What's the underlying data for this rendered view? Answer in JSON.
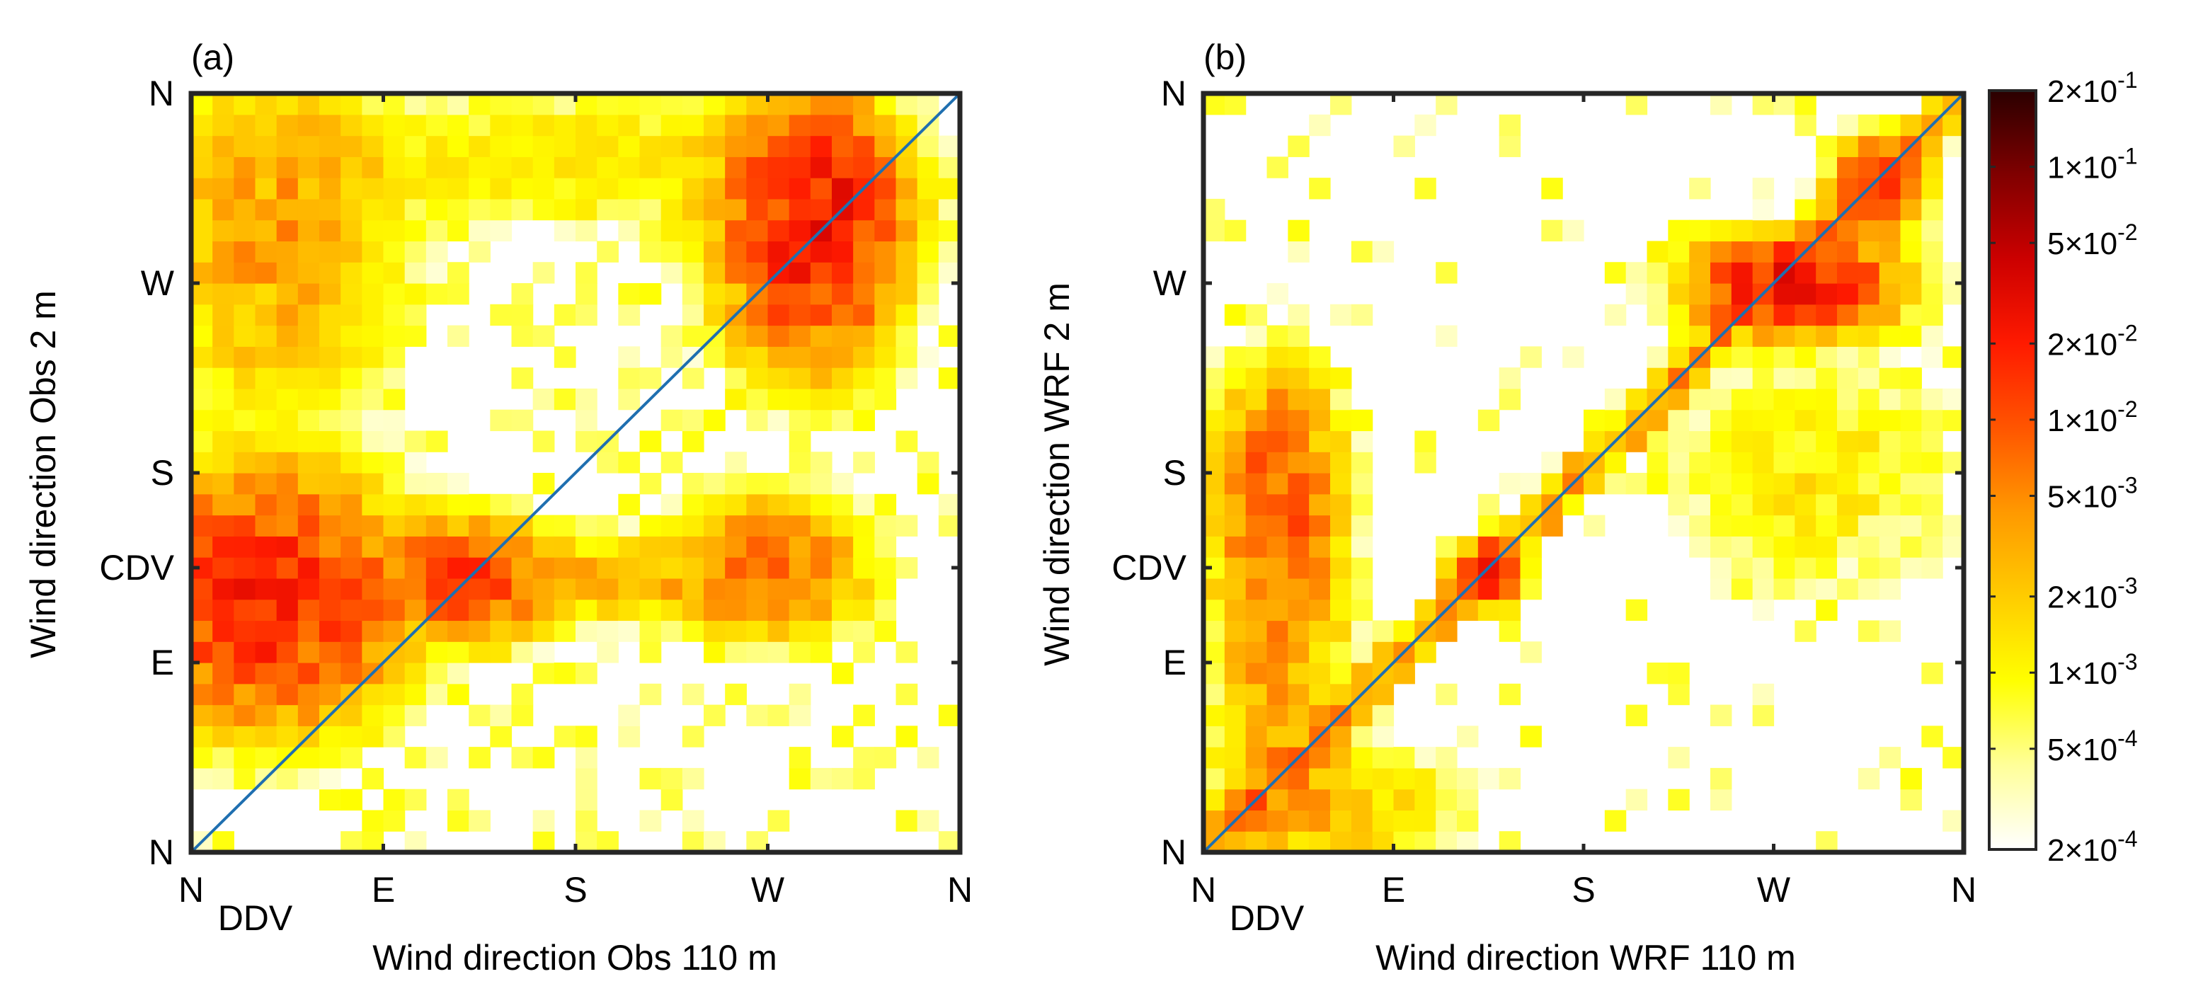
{
  "chart_data": [
    {
      "type": "heatmap",
      "panel_label": "(a)",
      "xlabel": "Wind direction Obs 110 m",
      "ylabel": "Wind direction Obs 2 m",
      "x_ticks": [
        {
          "label": "N",
          "value": 0
        },
        {
          "label": "DDV",
          "value": 30,
          "minor_label": true
        },
        {
          "label": "E",
          "value": 90
        },
        {
          "label": "S",
          "value": 180
        },
        {
          "label": "W",
          "value": 270
        },
        {
          "label": "N",
          "value": 360
        }
      ],
      "y_ticks": [
        {
          "label": "N",
          "value": 0
        },
        {
          "label": "E",
          "value": 90
        },
        {
          "label": "CDV",
          "value": 135
        },
        {
          "label": "S",
          "value": 180
        },
        {
          "label": "W",
          "value": 270
        },
        {
          "label": "N",
          "value": 360
        }
      ],
      "xlim": [
        0,
        360
      ],
      "ylim": [
        0,
        360
      ],
      "bins": 36,
      "diagonal_line": true,
      "hotspots": [
        {
          "x": 35,
          "y": 120,
          "sx": 32,
          "sy": 30,
          "w": 0.02
        },
        {
          "x": 290,
          "y": 295,
          "sx": 22,
          "sy": 32,
          "w": 0.022
        },
        {
          "x": 305,
          "y": 318,
          "sx": 12,
          "sy": 9,
          "w": 0.012
        },
        {
          "x": 130,
          "y": 130,
          "sx": 20,
          "sy": 15,
          "w": 0.012
        },
        {
          "x": 270,
          "y": 135,
          "sx": 25,
          "sy": 18,
          "w": 0.007
        },
        {
          "x": 40,
          "y": 290,
          "sx": 30,
          "sy": 45,
          "w": 0.004
        },
        {
          "x": 190,
          "y": 130,
          "sx": 45,
          "sy": 12,
          "w": 0.0025
        },
        {
          "x": 175,
          "y": 330,
          "sx": 90,
          "sy": 20,
          "w": 0.0012
        }
      ],
      "background_density": 0.3
    },
    {
      "type": "heatmap",
      "panel_label": "(b)",
      "xlabel": "Wind direction WRF 110 m",
      "ylabel": "Wind direction WRF 2 m",
      "x_ticks": [
        {
          "label": "N",
          "value": 0
        },
        {
          "label": "DDV",
          "value": 30,
          "minor_label": true
        },
        {
          "label": "E",
          "value": 90
        },
        {
          "label": "S",
          "value": 180
        },
        {
          "label": "W",
          "value": 270
        },
        {
          "label": "N",
          "value": 360
        }
      ],
      "y_ticks": [
        {
          "label": "N",
          "value": 0
        },
        {
          "label": "E",
          "value": 90
        },
        {
          "label": "CDV",
          "value": 135
        },
        {
          "label": "S",
          "value": 180
        },
        {
          "label": "W",
          "value": 270
        },
        {
          "label": "N",
          "value": 360
        }
      ],
      "xlim": [
        0,
        360
      ],
      "ylim": [
        0,
        360
      ],
      "bins": 36,
      "diagonal_line": true,
      "hotspots": [
        {
          "x": 35,
          "y": 170,
          "sx": 15,
          "sy": 30,
          "w": 0.008
        },
        {
          "x": 35,
          "y": 110,
          "sx": 18,
          "sy": 60,
          "w": 0.004
        },
        {
          "x": 135,
          "y": 132,
          "sx": 8,
          "sy": 8,
          "w": 0.02
        },
        {
          "x": 280,
          "y": 270,
          "sx": 25,
          "sy": 12,
          "w": 0.025
        },
        {
          "x": 320,
          "y": 318,
          "sx": 12,
          "sy": 12,
          "w": 0.012
        },
        {
          "x": 60,
          "y": 20,
          "sx": 35,
          "sy": 18,
          "w": 0.0025
        },
        {
          "x": 290,
          "y": 180,
          "sx": 45,
          "sy": 35,
          "w": 0.0012
        }
      ],
      "diagonal_density": 0.006,
      "background_density": 0.15
    }
  ],
  "colorbar": {
    "scale": "log",
    "range": [
      0.0002,
      0.2
    ],
    "tick_labels": [
      {
        "mantissa": "2",
        "exponent": "-1",
        "value": 0.2
      },
      {
        "mantissa": "1",
        "exponent": "-1",
        "value": 0.1
      },
      {
        "mantissa": "5",
        "exponent": "-2",
        "value": 0.05
      },
      {
        "mantissa": "2",
        "exponent": "-2",
        "value": 0.02
      },
      {
        "mantissa": "1",
        "exponent": "-2",
        "value": 0.01
      },
      {
        "mantissa": "5",
        "exponent": "-3",
        "value": 0.005
      },
      {
        "mantissa": "2",
        "exponent": "-3",
        "value": 0.002
      },
      {
        "mantissa": "1",
        "exponent": "-3",
        "value": 0.001
      },
      {
        "mantissa": "5",
        "exponent": "-4",
        "value": 0.0005
      },
      {
        "mantissa": "2",
        "exponent": "-4",
        "value": 0.0002
      }
    ],
    "colors": [
      "#ffffff",
      "#ffff99",
      "#ffff00",
      "#ffcc00",
      "#ff9900",
      "#ff5500",
      "#ff1a00",
      "#cc0000",
      "#800000",
      "#2a0000"
    ]
  },
  "colors": {
    "axis": "#262626",
    "diagonal": "#1f6fb0"
  }
}
